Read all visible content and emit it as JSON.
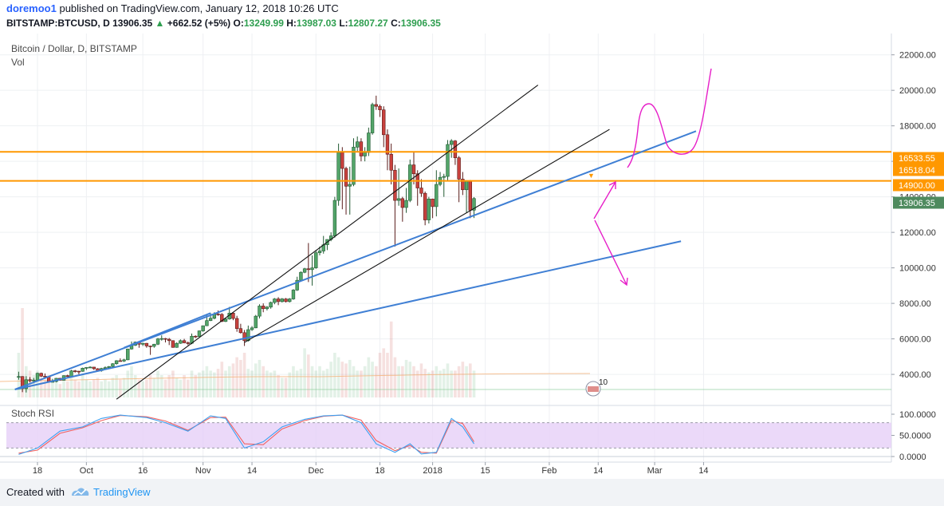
{
  "header": {
    "author": "doremoo1",
    "published": "published on TradingView.com, January 12, 2018 10:26 UTC",
    "symbol": "BITSTAMP:BTCUSD, D",
    "last": "13906.35",
    "change": "+662.52 (+5%)",
    "o_label": "O:",
    "o": "13249.99",
    "h_label": "H:",
    "h": "13987.03",
    "l_label": "L:",
    "l": "12807.27",
    "c_label": "C:",
    "c": "13906.35"
  },
  "legend": {
    "title": "Bitcoin / Dollar, D, BITSTAMP",
    "vol": "Vol",
    "stoch": "Stoch RSI"
  },
  "chart_data": {
    "type": "candlestick",
    "y_ticks": [
      4000,
      6000,
      8000,
      10000,
      12000,
      14000,
      16000,
      18000,
      20000,
      22000
    ],
    "y_tick_labels": [
      "4000.00",
      "6000.00",
      "8000.00",
      "10000.00",
      "12000.00",
      "14000.00",
      "16000.00",
      "18000.00",
      "20000.00",
      "22000.00"
    ],
    "x_tick_labels": [
      "18",
      "Oct",
      "16",
      "Nov",
      "14",
      "Dec",
      "18",
      "2018",
      "15",
      "Feb",
      "14",
      "Mar",
      "14"
    ],
    "x_tick_dates": [
      "2017-09-18",
      "2017-10-01",
      "2017-10-16",
      "2017-11-01",
      "2017-11-14",
      "2017-12-01",
      "2017-12-18",
      "2018-01-01",
      "2018-01-15",
      "2018-02-01",
      "2018-02-14",
      "2018-03-01",
      "2018-03-14"
    ],
    "ylim": [
      2700,
      23200
    ],
    "price_labels": [
      {
        "value": 16533.55,
        "text": "16533.55",
        "style": "orange"
      },
      {
        "value": 16518.04,
        "text": "16518.04",
        "style": "orange"
      },
      {
        "value": 14900.0,
        "text": "14900.00",
        "style": "orange"
      },
      {
        "value": 13906.35,
        "text": "13906.35",
        "style": "last"
      }
    ],
    "horizontal_lines": [
      16533.55,
      14900.0
    ],
    "candles": [
      [
        "2017-09-13",
        3850,
        4150,
        3700,
        3880
      ],
      [
        "2017-09-14",
        3880,
        3900,
        3000,
        3200
      ],
      [
        "2017-09-15",
        3200,
        3900,
        2980,
        3700
      ],
      [
        "2017-09-16",
        3700,
        3850,
        3550,
        3650
      ],
      [
        "2017-09-17",
        3650,
        3800,
        3500,
        3680
      ],
      [
        "2017-09-18",
        3680,
        4100,
        3650,
        4060
      ],
      [
        "2017-09-19",
        4060,
        4100,
        3850,
        3900
      ],
      [
        "2017-09-20",
        3900,
        4050,
        3850,
        3880
      ],
      [
        "2017-09-21",
        3880,
        3900,
        3550,
        3600
      ],
      [
        "2017-09-22",
        3600,
        3750,
        3550,
        3600
      ],
      [
        "2017-09-23",
        3600,
        3800,
        3550,
        3780
      ],
      [
        "2017-09-24",
        3780,
        3800,
        3650,
        3670
      ],
      [
        "2017-09-25",
        3670,
        3950,
        3650,
        3930
      ],
      [
        "2017-09-26",
        3930,
        3980,
        3850,
        3880
      ],
      [
        "2017-09-27",
        3880,
        4250,
        3870,
        4200
      ],
      [
        "2017-09-28",
        4200,
        4250,
        4100,
        4180
      ],
      [
        "2017-09-29",
        4180,
        4200,
        4000,
        4170
      ],
      [
        "2017-09-30",
        4170,
        4380,
        4150,
        4350
      ],
      [
        "2017-10-01",
        4350,
        4400,
        4250,
        4390
      ],
      [
        "2017-10-02",
        4390,
        4450,
        4350,
        4410
      ],
      [
        "2017-10-03",
        4410,
        4420,
        4250,
        4320
      ],
      [
        "2017-10-04",
        4320,
        4350,
        4180,
        4210
      ],
      [
        "2017-10-05",
        4210,
        4370,
        4150,
        4330
      ],
      [
        "2017-10-06",
        4330,
        4450,
        4300,
        4380
      ],
      [
        "2017-10-07",
        4380,
        4470,
        4320,
        4440
      ],
      [
        "2017-10-08",
        4440,
        4630,
        4400,
        4600
      ],
      [
        "2017-10-09",
        4600,
        4800,
        4550,
        4770
      ],
      [
        "2017-10-10",
        4770,
        4900,
        4720,
        4750
      ],
      [
        "2017-10-11",
        4750,
        4880,
        4700,
        4820
      ],
      [
        "2017-10-12",
        4820,
        5450,
        4800,
        5430
      ],
      [
        "2017-10-13",
        5430,
        5850,
        5400,
        5640
      ],
      [
        "2017-10-14",
        5640,
        5850,
        5600,
        5820
      ],
      [
        "2017-10-15",
        5820,
        5850,
        5500,
        5700
      ],
      [
        "2017-10-16",
        5700,
        5780,
        5600,
        5750
      ],
      [
        "2017-10-17",
        5750,
        5770,
        5500,
        5600
      ],
      [
        "2017-10-18",
        5600,
        5620,
        5100,
        5580
      ],
      [
        "2017-10-19",
        5580,
        5720,
        5500,
        5700
      ],
      [
        "2017-10-20",
        5700,
        6050,
        5650,
        6000
      ],
      [
        "2017-10-21",
        6000,
        6200,
        5900,
        6020
      ],
      [
        "2017-10-22",
        6020,
        6050,
        5800,
        5980
      ],
      [
        "2017-10-23",
        5980,
        6050,
        5650,
        5900
      ],
      [
        "2017-10-24",
        5900,
        5920,
        5500,
        5520
      ],
      [
        "2017-10-25",
        5520,
        5800,
        5500,
        5750
      ],
      [
        "2017-10-26",
        5750,
        5970,
        5720,
        5900
      ],
      [
        "2017-10-27",
        5900,
        6000,
        5750,
        5780
      ],
      [
        "2017-10-28",
        5780,
        5850,
        5650,
        5750
      ],
      [
        "2017-10-29",
        5750,
        6300,
        5700,
        6150
      ],
      [
        "2017-10-30",
        6150,
        6200,
        6050,
        6130
      ],
      [
        "2017-10-31",
        6130,
        6470,
        6100,
        6450
      ],
      [
        "2017-11-01",
        6450,
        6750,
        6400,
        6740
      ],
      [
        "2017-11-02",
        6740,
        7350,
        6720,
        7030
      ],
      [
        "2017-11-03",
        7030,
        7450,
        7000,
        7160
      ],
      [
        "2017-11-04",
        7160,
        7500,
        7100,
        7400
      ],
      [
        "2017-11-05",
        7400,
        7600,
        7300,
        7380
      ],
      [
        "2017-11-06",
        7380,
        7450,
        6950,
        6980
      ],
      [
        "2017-11-07",
        6980,
        7200,
        6950,
        7120
      ],
      [
        "2017-11-08",
        7120,
        7800,
        7080,
        7450
      ],
      [
        "2017-11-09",
        7450,
        7500,
        7050,
        7150
      ],
      [
        "2017-11-10",
        7150,
        7300,
        6400,
        6580
      ],
      [
        "2017-11-11",
        6580,
        6850,
        6300,
        6350
      ],
      [
        "2017-11-12",
        6350,
        6500,
        5600,
        5900
      ],
      [
        "2017-11-13",
        5900,
        6750,
        5850,
        6520
      ],
      [
        "2017-11-14",
        6520,
        6720,
        6450,
        6620
      ],
      [
        "2017-11-15",
        6620,
        7350,
        6600,
        7280
      ],
      [
        "2017-11-16",
        7280,
        7950,
        7150,
        7850
      ],
      [
        "2017-11-17",
        7850,
        8000,
        7500,
        7700
      ],
      [
        "2017-11-18",
        7700,
        7850,
        7600,
        7790
      ],
      [
        "2017-11-19",
        7790,
        8100,
        7700,
        8050
      ],
      [
        "2017-11-20",
        8050,
        8300,
        7950,
        8250
      ],
      [
        "2017-11-21",
        8250,
        8350,
        7900,
        8100
      ],
      [
        "2017-11-22",
        8100,
        8300,
        8050,
        8250
      ],
      [
        "2017-11-23",
        8250,
        8300,
        8050,
        8100
      ],
      [
        "2017-11-24",
        8100,
        8300,
        8050,
        8250
      ],
      [
        "2017-11-25",
        8250,
        8800,
        8200,
        8750
      ],
      [
        "2017-11-26",
        8750,
        9500,
        8700,
        9300
      ],
      [
        "2017-11-27",
        9300,
        9800,
        9300,
        9750
      ],
      [
        "2017-11-28",
        9750,
        10000,
        9700,
        9950
      ],
      [
        "2017-11-29",
        9950,
        11400,
        9200,
        9900
      ],
      [
        "2017-11-30",
        9900,
        10700,
        9000,
        10000
      ],
      [
        "2017-12-01",
        10000,
        11000,
        9950,
        10850
      ],
      [
        "2017-12-02",
        10850,
        11200,
        10700,
        10950
      ],
      [
        "2017-12-03",
        10950,
        11800,
        10800,
        11300
      ],
      [
        "2017-12-04",
        11300,
        11600,
        11000,
        11600
      ],
      [
        "2017-12-05",
        11600,
        12000,
        11500,
        11800
      ],
      [
        "2017-12-06",
        11800,
        14000,
        11700,
        13800
      ],
      [
        "2017-12-07",
        13800,
        17000,
        13500,
        16500
      ],
      [
        "2017-12-08",
        16500,
        16800,
        13300,
        15600
      ],
      [
        "2017-12-09",
        15600,
        15700,
        13000,
        14600
      ],
      [
        "2017-12-10",
        14600,
        15700,
        13000,
        14700
      ],
      [
        "2017-12-11",
        14700,
        17300,
        14600,
        16800
      ],
      [
        "2017-12-12",
        16800,
        17400,
        16500,
        17100
      ],
      [
        "2017-12-13",
        17100,
        17300,
        16000,
        16300
      ],
      [
        "2017-12-14",
        16300,
        16800,
        16000,
        16500
      ],
      [
        "2017-12-15",
        16500,
        17900,
        16300,
        17600
      ],
      [
        "2017-12-16",
        17600,
        19300,
        17500,
        19200
      ],
      [
        "2017-12-17",
        19200,
        19700,
        18900,
        19100
      ],
      [
        "2017-12-18",
        19100,
        19200,
        18500,
        18900
      ],
      [
        "2017-12-19",
        18900,
        19100,
        16800,
        17500
      ],
      [
        "2017-12-20",
        17500,
        17800,
        15500,
        16400
      ],
      [
        "2017-12-21",
        16400,
        17000,
        14700,
        15500
      ],
      [
        "2017-12-22",
        15500,
        15800,
        11200,
        13800
      ],
      [
        "2017-12-23",
        13800,
        15600,
        13500,
        13900
      ],
      [
        "2017-12-24",
        13900,
        14000,
        12600,
        13400
      ],
      [
        "2017-12-25",
        13400,
        14500,
        13100,
        13800
      ],
      [
        "2017-12-26",
        13800,
        16100,
        13700,
        15800
      ],
      [
        "2017-12-27",
        15800,
        16500,
        14700,
        15300
      ],
      [
        "2017-12-28",
        15300,
        15500,
        13500,
        14500
      ],
      [
        "2017-12-29",
        14500,
        15000,
        14000,
        14200
      ],
      [
        "2017-12-30",
        14200,
        14300,
        12400,
        12700
      ],
      [
        "2017-12-31",
        12700,
        14000,
        12500,
        13880
      ],
      [
        "2018-01-01",
        13880,
        13900,
        12800,
        13450
      ],
      [
        "2018-01-02",
        13450,
        15500,
        12900,
        14700
      ],
      [
        "2018-01-03",
        14700,
        15400,
        14600,
        15100
      ],
      [
        "2018-01-04",
        15100,
        15300,
        14000,
        15150
      ],
      [
        "2018-01-05",
        15150,
        17200,
        14900,
        16950
      ],
      [
        "2018-01-06",
        16950,
        17250,
        16200,
        17150
      ],
      [
        "2018-01-07",
        17150,
        17200,
        15800,
        16200
      ],
      [
        "2018-01-08",
        16200,
        16300,
        13700,
        15000
      ],
      [
        "2018-01-09",
        15000,
        15400,
        14100,
        14400
      ],
      [
        "2018-01-10",
        14400,
        14900,
        13100,
        14900
      ],
      [
        "2018-01-11",
        14900,
        14950,
        12800,
        13250
      ],
      [
        "2018-01-12",
        13250,
        13987,
        12807,
        13906
      ]
    ],
    "volume_bars_relative": [
      0.5,
      1.0,
      0.35,
      0.3,
      0.25,
      0.3,
      0.22,
      0.2,
      0.25,
      0.2,
      0.18,
      0.15,
      0.2,
      0.18,
      0.22,
      0.2,
      0.18,
      0.25,
      0.2,
      0.18,
      0.2,
      0.22,
      0.18,
      0.2,
      0.18,
      0.22,
      0.25,
      0.2,
      0.22,
      0.3,
      0.35,
      0.25,
      0.2,
      0.18,
      0.2,
      0.25,
      0.22,
      0.3,
      0.25,
      0.2,
      0.25,
      0.3,
      0.22,
      0.2,
      0.25,
      0.2,
      0.3,
      0.25,
      0.28,
      0.3,
      0.35,
      0.3,
      0.28,
      0.32,
      0.4,
      0.3,
      0.35,
      0.38,
      0.45,
      0.42,
      0.5,
      0.32,
      0.3,
      0.38,
      0.42,
      0.35,
      0.3,
      0.28,
      0.3,
      0.25,
      0.22,
      0.22,
      0.28,
      0.35,
      0.3,
      0.32,
      0.55,
      0.48,
      0.35,
      0.3,
      0.35,
      0.3,
      0.32,
      0.4,
      0.5,
      0.45,
      0.4,
      0.38,
      0.42,
      0.35,
      0.3,
      0.3,
      0.35,
      0.45,
      0.4,
      0.35,
      0.5,
      0.55,
      0.5,
      0.85,
      0.45,
      0.35,
      0.35,
      0.42,
      0.4,
      0.35,
      0.3,
      0.38,
      0.32,
      0.28,
      0.3,
      0.35,
      0.3,
      0.32,
      0.38,
      0.3,
      0.3,
      0.35,
      0.4,
      0.35,
      0.38,
      0.3
    ],
    "stoch_rsi": {
      "ylim": [
        0,
        100
      ],
      "ticks": [
        0,
        50,
        100
      ],
      "tick_labels": [
        "0.0000",
        "50.0000",
        "100.0000"
      ],
      "band": [
        20,
        80
      ],
      "k": [
        [
          "2017-09-13",
          5
        ],
        [
          "2017-09-18",
          20
        ],
        [
          "2017-09-24",
          60
        ],
        [
          "2017-09-30",
          70
        ],
        [
          "2017-10-05",
          90
        ],
        [
          "2017-10-10",
          98
        ],
        [
          "2017-10-17",
          92
        ],
        [
          "2017-10-22",
          80
        ],
        [
          "2017-10-28",
          60
        ],
        [
          "2017-11-03",
          96
        ],
        [
          "2017-11-07",
          90
        ],
        [
          "2017-11-12",
          20
        ],
        [
          "2017-11-17",
          35
        ],
        [
          "2017-11-22",
          70
        ],
        [
          "2017-11-28",
          88
        ],
        [
          "2017-12-03",
          96
        ],
        [
          "2017-12-08",
          98
        ],
        [
          "2017-12-13",
          80
        ],
        [
          "2017-12-17",
          30
        ],
        [
          "2017-12-22",
          10
        ],
        [
          "2017-12-26",
          30
        ],
        [
          "2017-12-29",
          6
        ],
        [
          "2018-01-02",
          10
        ],
        [
          "2018-01-06",
          90
        ],
        [
          "2018-01-09",
          70
        ],
        [
          "2018-01-12",
          30
        ]
      ],
      "d": [
        [
          "2017-09-13",
          8
        ],
        [
          "2017-09-18",
          15
        ],
        [
          "2017-09-24",
          55
        ],
        [
          "2017-09-30",
          68
        ],
        [
          "2017-10-05",
          85
        ],
        [
          "2017-10-10",
          97
        ],
        [
          "2017-10-17",
          94
        ],
        [
          "2017-10-22",
          84
        ],
        [
          "2017-10-28",
          62
        ],
        [
          "2017-11-03",
          92
        ],
        [
          "2017-11-07",
          93
        ],
        [
          "2017-11-12",
          30
        ],
        [
          "2017-11-17",
          28
        ],
        [
          "2017-11-22",
          65
        ],
        [
          "2017-11-28",
          85
        ],
        [
          "2017-12-03",
          95
        ],
        [
          "2017-12-08",
          98
        ],
        [
          "2017-12-13",
          86
        ],
        [
          "2017-12-17",
          38
        ],
        [
          "2017-12-22",
          14
        ],
        [
          "2017-12-26",
          26
        ],
        [
          "2017-12-29",
          10
        ],
        [
          "2018-01-02",
          8
        ],
        [
          "2018-01-06",
          85
        ],
        [
          "2018-01-09",
          78
        ],
        [
          "2018-01-12",
          35
        ]
      ]
    },
    "drawings": {
      "blue_lines": [
        {
          "from": [
            "2017-09-12",
            3150
          ],
          "to": [
            "2018-03-12",
            17700
          ]
        },
        {
          "from": [
            "2017-10-11",
            5500
          ],
          "to": [
            "2017-11-03",
            7450
          ]
        },
        {
          "from": [
            "2017-09-12",
            3150
          ],
          "to": [
            "2018-03-08",
            11500
          ]
        }
      ],
      "black_lines": [
        {
          "from": [
            "2017-10-09",
            2600
          ],
          "to": [
            "2018-01-29",
            20300
          ]
        },
        {
          "from": [
            "2017-11-12",
            5800
          ],
          "to": [
            "2018-02-17",
            17800
          ]
        }
      ],
      "annotation_text": "10"
    }
  },
  "footer": {
    "created_with": "Created with",
    "brand": "TradingView"
  },
  "colors": {
    "up": "#53a569",
    "down": "#c9423e",
    "blue_line": "#3f7fd4",
    "orange": "#ff9800",
    "magenta": "#e61ec8",
    "stoch_k": "#3ea0f0",
    "stoch_d": "#f06262",
    "stoch_band": "#e6cff7"
  }
}
